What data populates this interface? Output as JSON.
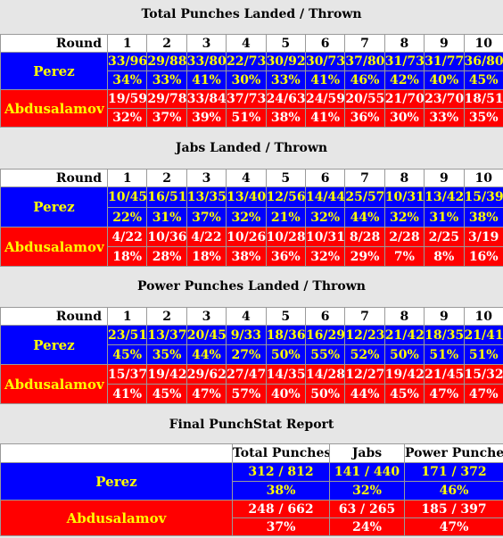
{
  "rounds_label": "Round",
  "rounds": [
    "1",
    "2",
    "3",
    "4",
    "5",
    "6",
    "7",
    "8",
    "9",
    "10"
  ],
  "sections": [
    {
      "title": "Total Punches Landed / Thrown",
      "perez": {
        "name": "Perez",
        "landed": [
          "33/96",
          "29/88",
          "33/80",
          "22/73",
          "30/92",
          "30/73",
          "37/80",
          "31/73",
          "31/77",
          "36/80"
        ],
        "pct": [
          "34%",
          "33%",
          "41%",
          "30%",
          "33%",
          "41%",
          "46%",
          "42%",
          "40%",
          "45%"
        ]
      },
      "abdu": {
        "name": "Abdusalamov",
        "landed": [
          "19/59",
          "29/78",
          "33/84",
          "37/73",
          "24/63",
          "24/59",
          "20/55",
          "21/70",
          "23/70",
          "18/51"
        ],
        "pct": [
          "32%",
          "37%",
          "39%",
          "51%",
          "38%",
          "41%",
          "36%",
          "30%",
          "33%",
          "35%"
        ]
      }
    },
    {
      "title": "Jabs Landed / Thrown",
      "perez": {
        "name": "Perez",
        "landed": [
          "10/45",
          "16/51",
          "13/35",
          "13/40",
          "12/56",
          "14/44",
          "25/57",
          "10/31",
          "13/42",
          "15/39"
        ],
        "pct": [
          "22%",
          "31%",
          "37%",
          "32%",
          "21%",
          "32%",
          "44%",
          "32%",
          "31%",
          "38%"
        ]
      },
      "abdu": {
        "name": "Abdusalamov",
        "landed": [
          "4/22",
          "10/36",
          "4/22",
          "10/26",
          "10/28",
          "10/31",
          "8/28",
          "2/28",
          "2/25",
          "3/19"
        ],
        "pct": [
          "18%",
          "28%",
          "18%",
          "38%",
          "36%",
          "32%",
          "29%",
          "7%",
          "8%",
          "16%"
        ]
      }
    },
    {
      "title": "Power Punches Landed / Thrown",
      "perez": {
        "name": "Perez",
        "landed": [
          "23/51",
          "13/37",
          "20/45",
          "9/33",
          "18/36",
          "16/29",
          "12/23",
          "21/42",
          "18/35",
          "21/41"
        ],
        "pct": [
          "45%",
          "35%",
          "44%",
          "27%",
          "50%",
          "55%",
          "52%",
          "50%",
          "51%",
          "51%"
        ]
      },
      "abdu": {
        "name": "Abdusalamov",
        "landed": [
          "15/37",
          "19/42",
          "29/62",
          "27/47",
          "14/35",
          "14/28",
          "12/27",
          "19/42",
          "21/45",
          "15/32"
        ],
        "pct": [
          "41%",
          "45%",
          "47%",
          "57%",
          "40%",
          "50%",
          "44%",
          "45%",
          "47%",
          "47%"
        ]
      }
    }
  ],
  "final": {
    "title": "Final PunchStat Report",
    "headers": [
      "Total Punches",
      "Jabs",
      "Power Punches"
    ],
    "perez": {
      "name": "Perez",
      "values": [
        "312 / 812",
        "141 / 440",
        "171 / 372"
      ],
      "pct": [
        "38%",
        "32%",
        "46%"
      ]
    },
    "abdu": {
      "name": "Abdusalamov",
      "values": [
        "248 / 662",
        "63 / 265",
        "185 / 397"
      ],
      "pct": [
        "37%",
        "24%",
        "47%"
      ]
    }
  },
  "colors": {
    "perez_bg": "#0000ff",
    "abdu_bg": "#ff0000",
    "highlight_text": "#ffff00",
    "page_bg": "#e6e6e6"
  }
}
